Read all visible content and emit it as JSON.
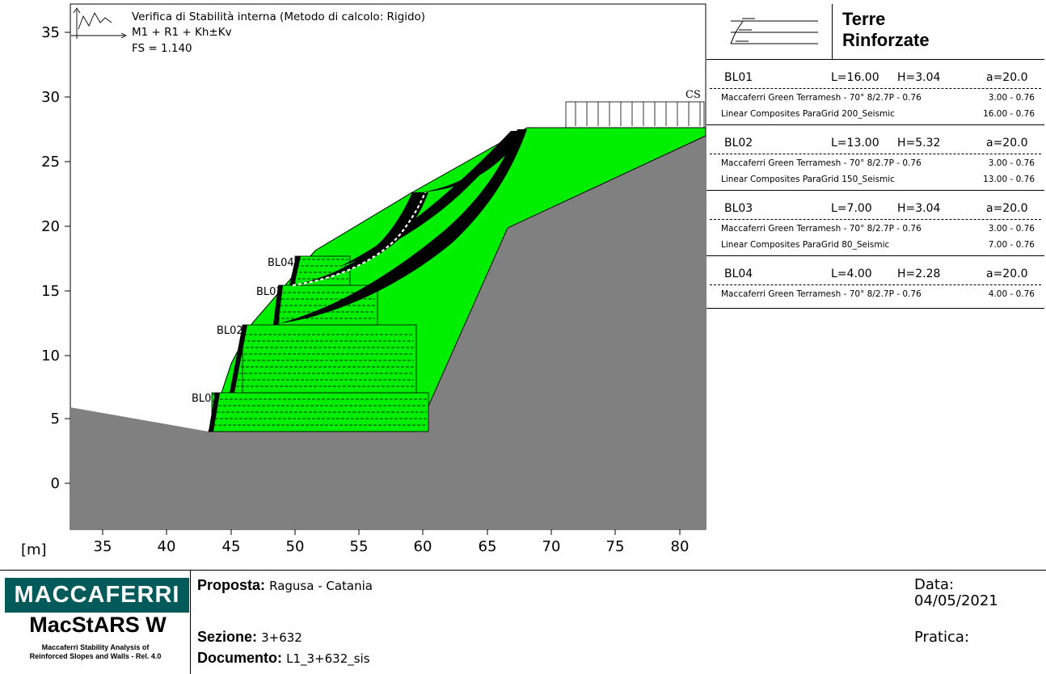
{
  "analysis": {
    "title": "Verifica di Stabilità interna (Metodo di calcolo: Rigido)",
    "combination": "M1 + R1 + Kh±Kv",
    "fs": "FS = 1.140",
    "load_label": "CS"
  },
  "axes": {
    "unit_label": "[m]",
    "x_ticks": [
      "35",
      "40",
      "45",
      "50",
      "55",
      "60",
      "65",
      "70",
      "75",
      "80"
    ],
    "y_ticks": [
      "35",
      "30",
      "25",
      "20",
      "15",
      "10",
      "5",
      "0"
    ]
  },
  "diagram_labels": {
    "bl01": "BL01",
    "bl02": "BL02",
    "bl03": "BL03",
    "bl04": "BL04"
  },
  "colors": {
    "soil": "#808080",
    "fill": "#00ee00",
    "surfaces": "#000000",
    "critical": "#ffffff",
    "brand": "#005a5a"
  },
  "panel": {
    "header_title_1": "Terre",
    "header_title_2": "Rinforzate",
    "blocks": [
      {
        "name": "BL01",
        "L": "L=16.00",
        "H": "H=3.04",
        "a": "a=20.0",
        "rows": [
          {
            "name": "Maccaferri Green Terramesh - 70° 8/2.7P - 0.76",
            "value": "3.00 - 0.76"
          },
          {
            "name": "Linear Composites ParaGrid 200_Seismic",
            "value": "16.00 - 0.76"
          }
        ]
      },
      {
        "name": "BL02",
        "L": "L=13.00",
        "H": "H=5.32",
        "a": "a=20.0",
        "rows": [
          {
            "name": "Maccaferri Green Terramesh - 70° 8/2.7P - 0.76",
            "value": "3.00 - 0.76"
          },
          {
            "name": "Linear Composites ParaGrid 150_Seismic",
            "value": "13.00 - 0.76"
          }
        ]
      },
      {
        "name": "BL03",
        "L": "L=7.00",
        "H": "H=3.04",
        "a": "a=20.0",
        "rows": [
          {
            "name": "Maccaferri Green Terramesh - 70° 8/2.7P - 0.76",
            "value": "3.00 - 0.76"
          },
          {
            "name": "Linear Composites ParaGrid 80_Seismic",
            "value": "7.00 - 0.76"
          }
        ]
      },
      {
        "name": "BL04",
        "L": "L=4.00",
        "H": "H=2.28",
        "a": "a=20.0",
        "rows": [
          {
            "name": "Maccaferri Green Terramesh - 70° 8/2.7P - 0.76",
            "value": "4.00 - 0.76"
          }
        ]
      }
    ]
  },
  "footer": {
    "company": "MACCAFERRI",
    "product": "MacStARS W",
    "product_sub_1": "Maccaferri Stability Analysis of",
    "product_sub_2": "Reinforced Slopes and Walls - Rel. 4.0",
    "proposta_label": "Proposta:",
    "proposta_value": "Ragusa - Catania",
    "sezione_label": "Sezione:",
    "sezione_value": "3+632",
    "documento_label": "Documento:",
    "documento_value": "L1_3+632_sis",
    "data_label": "Data:",
    "data_value": "04/05/2021",
    "pratica_label": "Pratica:"
  }
}
